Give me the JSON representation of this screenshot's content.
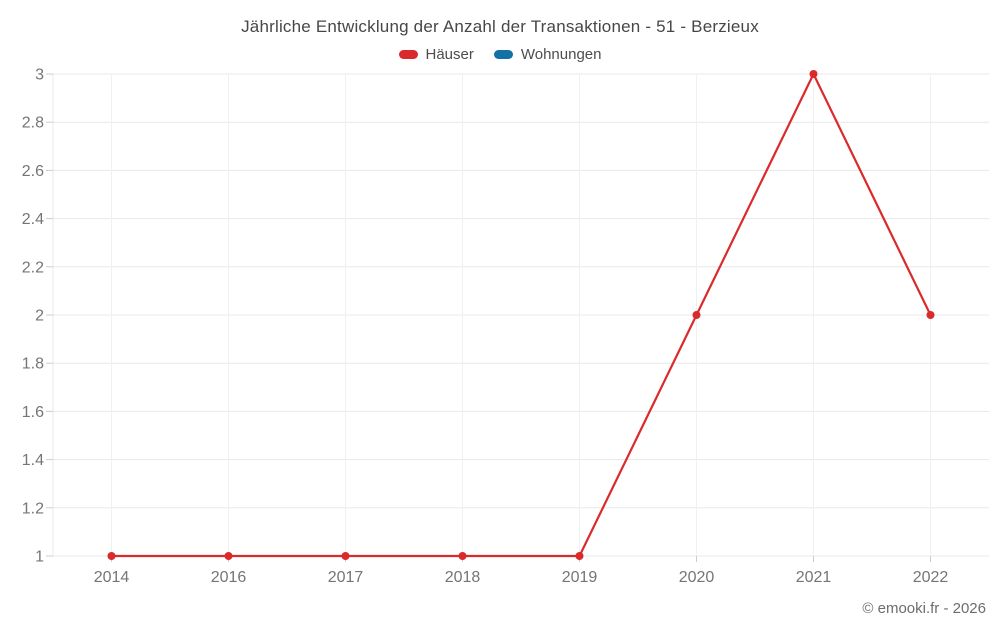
{
  "title": "Jährliche Entwicklung der Anzahl der Transaktionen - 51 - Berzieux",
  "footer": "© emooki.fr - 2026",
  "colors": {
    "haeuser_red": "#db2a2b",
    "wohnungen_blue": "#1272a5",
    "axis_label_gray": "#757575",
    "gridline_h": "#e8e8e8",
    "gridline_v": "#f0f0f0",
    "tick": "#cccccc"
  },
  "chart_data": {
    "type": "line",
    "title": "Jährliche Entwicklung der Anzahl der Transaktionen - 51 - Berzieux",
    "categories": [
      "2014",
      "2016",
      "2017",
      "2018",
      "2019",
      "2020",
      "2021",
      "2022"
    ],
    "series": [
      {
        "name": "Häuser",
        "color": "#db2a2b",
        "values": [
          1,
          1,
          1,
          1,
          1,
          2,
          3,
          2
        ],
        "visible": true
      },
      {
        "name": "Wohnungen",
        "color": "#1272a5",
        "values": [],
        "visible": false
      }
    ],
    "xlabel": "",
    "ylabel": "",
    "ylim": [
      1,
      3
    ],
    "ytick_step": 0.2,
    "ytick_labels": [
      "1",
      "1.2",
      "1.4",
      "1.6",
      "1.8",
      "2",
      "2.2",
      "2.4",
      "2.6",
      "2.8",
      "3"
    ],
    "grid": true,
    "legend_position": "top",
    "marker": "circle"
  }
}
